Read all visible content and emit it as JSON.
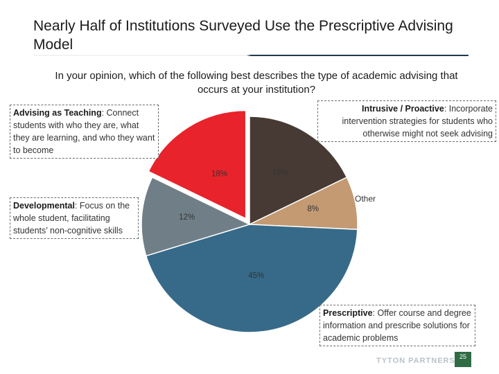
{
  "slide": {
    "title": "Nearly Half of Institutions Surveyed Use the Prescriptive Advising Model",
    "question": "In your opinion, which of the following best describes the type of academic advising that occurs at your institution?",
    "logo": "TYTON PARTNERS",
    "page_number": "25"
  },
  "callouts": {
    "teaching": {
      "term": "Advising as Teaching",
      "text": ": Connect students with who they are, what they are learning, and who they want to become"
    },
    "intrusive": {
      "term": "Intrusive / Proactive",
      "text": ": Incorporate intervention strategies for students who otherwise might not seek advising"
    },
    "developmental": {
      "term": "Developmental",
      "text": ": Focus on the whole student, facilitating students’ non-cognitive skills"
    },
    "prescriptive": {
      "term": "Prescriptive",
      "text": ": Offer course and degree information and prescribe solutions for academic problems"
    },
    "other": "Other"
  },
  "chart_data": {
    "type": "pie",
    "title": "",
    "slices": [
      {
        "label": "Intrusive / Proactive",
        "value": 18,
        "display": "18%",
        "color": "#473a34"
      },
      {
        "label": "Other",
        "value": 8,
        "display": "8%",
        "color": "#c39a72"
      },
      {
        "label": "Prescriptive",
        "value": 45,
        "display": "45%",
        "color": "#376a89"
      },
      {
        "label": "Developmental",
        "value": 12,
        "display": "12%",
        "color": "#707f87"
      },
      {
        "label": "Advising as Teaching",
        "value": 18,
        "display": "18%",
        "color": "#e8232b"
      }
    ],
    "exploded": "Advising as Teaching"
  }
}
